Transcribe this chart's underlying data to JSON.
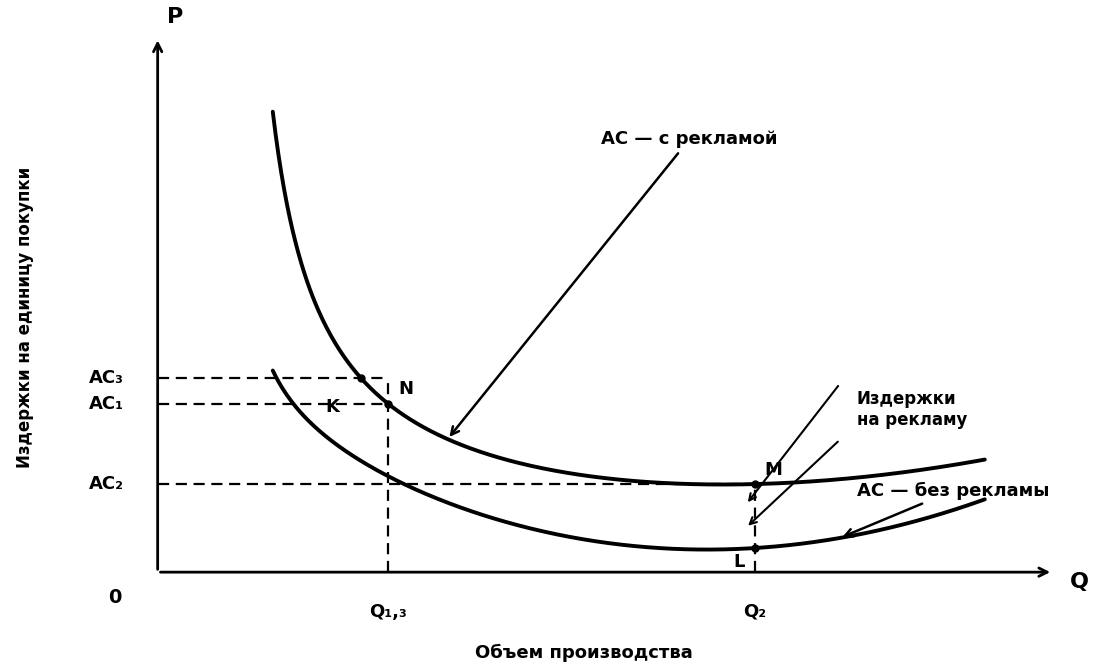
{
  "xlabel": "Объем производства",
  "ylabel": "Издержки на единицу покупки",
  "axis_label_P": "P",
  "axis_label_Q": "Q",
  "origin_label": "0",
  "ac_with_ad_label": "AC — с рекламой",
  "ac_no_ad_label": "AC — без рекламы",
  "ad_cost_label": "Издержки\nна рекламу",
  "point_K": "K",
  "point_N": "N",
  "point_M": "M",
  "point_L": "L",
  "label_AC3": "AC₃",
  "label_AC1": "AC₁",
  "label_AC2": "AC₂",
  "label_Q13": "Q₁,₃",
  "label_Q2": "Q₂",
  "background_color": "#ffffff",
  "curve_color": "#000000",
  "dashed_color": "#000000",
  "linewidth": 2.8,
  "dashed_linewidth": 1.6
}
